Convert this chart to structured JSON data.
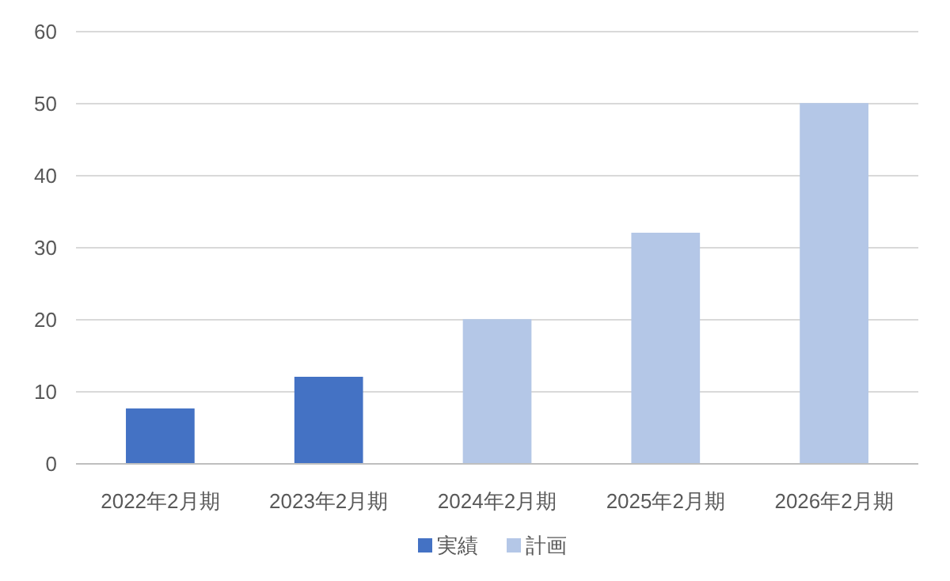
{
  "chart_data": {
    "type": "bar",
    "categories": [
      "2022年2月期",
      "2023年2月期",
      "2024年2月期",
      "2025年2月期",
      "2026年2月期"
    ],
    "series": [
      {
        "name": "実績",
        "color": "#4472c4",
        "values": [
          7.6,
          12,
          null,
          null,
          null
        ]
      },
      {
        "name": "計画",
        "color": "#b4c7e7",
        "values": [
          null,
          null,
          20,
          32,
          50
        ]
      }
    ],
    "ylim": [
      0,
      60
    ],
    "yticks": [
      0,
      10,
      20,
      30,
      40,
      50,
      60
    ],
    "grid": "y",
    "legend": "bottom"
  }
}
